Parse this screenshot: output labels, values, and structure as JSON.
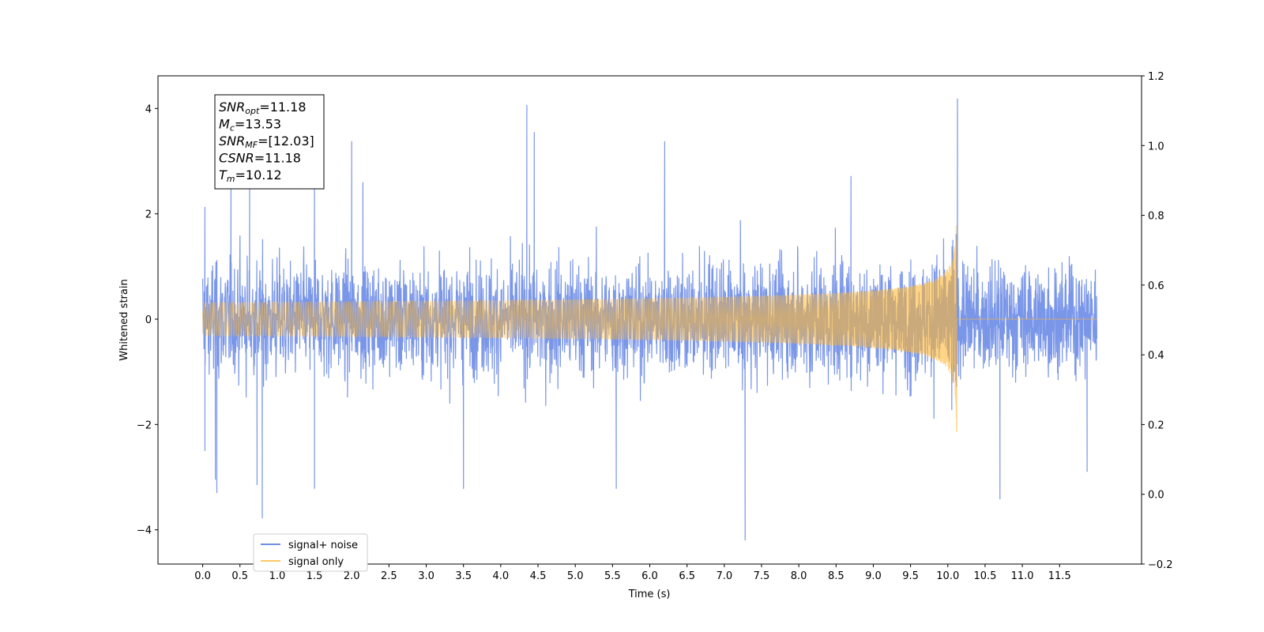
{
  "chart_data": {
    "type": "line",
    "xlabel": "Time (s)",
    "ylabel": "Whitened strain",
    "xlim": [
      -0.6,
      12.6
    ],
    "ylim": [
      -4.65,
      4.62
    ],
    "y2lim": [
      -0.2,
      1.2
    ],
    "x_ticks": [
      "0.0",
      "0.5",
      "1.0",
      "1.5",
      "2.0",
      "2.5",
      "3.0",
      "3.5",
      "4.0",
      "4.5",
      "5.0",
      "5.5",
      "6.0",
      "6.5",
      "7.0",
      "7.5",
      "8.0",
      "8.5",
      "9.0",
      "9.5",
      "10.0",
      "10.5",
      "11.0",
      "11.5"
    ],
    "y_ticks": [
      "4",
      "2",
      "0",
      "−2",
      "−4"
    ],
    "y2_ticks": [
      "1.2",
      "1.0",
      "0.8",
      "0.6",
      "0.4",
      "0.2",
      "0.0",
      "−0.2"
    ],
    "annotation": {
      "lines": [
        {
          "base": "SNR",
          "sub": "opt",
          "value": "=11.18"
        },
        {
          "base": "M",
          "sub": "c",
          "value": "=13.53"
        },
        {
          "base": "SNR",
          "sub": "MF",
          "value": "=[12.03]"
        },
        {
          "base": "CSNR",
          "sub": "",
          "value": "=11.18"
        },
        {
          "base": "T",
          "sub": "m",
          "value": "=10.12"
        }
      ]
    },
    "legend": {
      "placement": "lower-left",
      "entries": [
        {
          "label": "signal+ noise",
          "color": "#4169e1"
        },
        {
          "label": "signal only",
          "color": "#ffb732"
        }
      ]
    },
    "series": [
      {
        "name": "signal+ noise",
        "color": "#7a96e8",
        "x_range": [
          0.0,
          12.0
        ],
        "noise_envelope": [
          -2.2,
          2.2
        ],
        "peaks": [
          {
            "x": 0.03,
            "y": 2.13
          },
          {
            "x": 0.03,
            "y": -2.5
          },
          {
            "x": 0.17,
            "y": -3.05
          },
          {
            "x": 0.19,
            "y": -3.3
          },
          {
            "x": 0.38,
            "y": 2.5
          },
          {
            "x": 0.63,
            "y": 2.5
          },
          {
            "x": 0.8,
            "y": -3.78
          },
          {
            "x": 0.73,
            "y": -3.15
          },
          {
            "x": 1.5,
            "y": 2.5
          },
          {
            "x": 1.5,
            "y": -3.22
          },
          {
            "x": 2.0,
            "y": 3.38
          },
          {
            "x": 2.15,
            "y": 2.6
          },
          {
            "x": 3.5,
            "y": -3.22
          },
          {
            "x": 4.35,
            "y": 4.07
          },
          {
            "x": 4.45,
            "y": 3.55
          },
          {
            "x": 5.55,
            "y": -3.22
          },
          {
            "x": 6.2,
            "y": 3.38
          },
          {
            "x": 7.28,
            "y": -4.2
          },
          {
            "x": 8.7,
            "y": 2.72
          },
          {
            "x": 10.13,
            "y": 4.19
          },
          {
            "x": 10.7,
            "y": -3.42
          },
          {
            "x": 11.87,
            "y": -2.9
          }
        ]
      },
      {
        "name": "signal only",
        "color": "#ffb732",
        "model": "chirp",
        "merger_time": 10.12,
        "x_range": [
          0.0,
          12.0
        ],
        "peak_amplitude": 2.25
      }
    ]
  }
}
